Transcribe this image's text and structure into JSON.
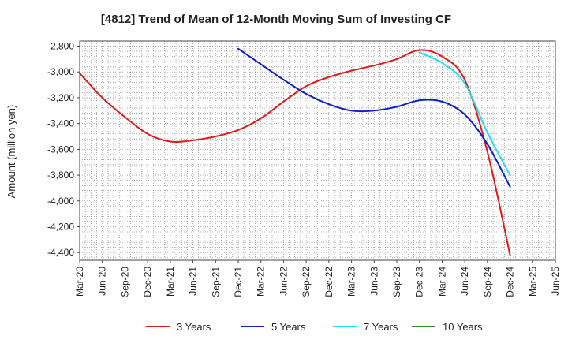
{
  "chart_data": {
    "type": "line",
    "title": "[4812]  Trend of Mean of 12-Month Moving Sum of Investing CF",
    "xlabel": "",
    "ylabel": "Amount (million yen)",
    "ylim": [
      -4460,
      -2760
    ],
    "yticks": [
      -2800,
      -3000,
      -3200,
      -3400,
      -3600,
      -3800,
      -4000,
      -4200,
      -4400
    ],
    "ytick_labels": [
      "-2,800",
      "-3,000",
      "-3,200",
      "-3,400",
      "-3,600",
      "-3,800",
      "-4,000",
      "-4,200",
      "-4,400"
    ],
    "categories": [
      "Mar-20",
      "Jun-20",
      "Sep-20",
      "Dec-20",
      "Mar-21",
      "Jun-21",
      "Sep-21",
      "Dec-21",
      "Mar-22",
      "Jun-22",
      "Sep-22",
      "Dec-22",
      "Mar-23",
      "Jun-23",
      "Sep-23",
      "Dec-23",
      "Mar-24",
      "Jun-24",
      "Sep-24",
      "Dec-24",
      "Mar-25",
      "Jun-25"
    ],
    "grid": true,
    "legend_position": "bottom",
    "series": [
      {
        "name": "3 Years",
        "color": "#e31a1c",
        "values": [
          -3010,
          -3200,
          -3350,
          -3480,
          -3540,
          -3530,
          -3500,
          -3450,
          -3360,
          -3230,
          -3110,
          -3040,
          -2990,
          -2950,
          -2900,
          -2830,
          -2880,
          -3060,
          -3620,
          -4420,
          null,
          null
        ]
      },
      {
        "name": "5 Years",
        "color": "#0a1fc9",
        "values": [
          null,
          null,
          null,
          null,
          null,
          null,
          null,
          -2820,
          -2940,
          -3060,
          -3170,
          -3250,
          -3300,
          -3300,
          -3270,
          -3220,
          -3230,
          -3330,
          -3560,
          -3890,
          null,
          null
        ]
      },
      {
        "name": "7 Years",
        "color": "#22e0f0",
        "values": [
          null,
          null,
          null,
          null,
          null,
          null,
          null,
          null,
          null,
          null,
          null,
          null,
          null,
          null,
          null,
          -2850,
          -2930,
          -3090,
          -3470,
          -3800,
          null,
          null
        ]
      },
      {
        "name": "10 Years",
        "color": "#2a8a2a",
        "values": [
          null,
          null,
          null,
          null,
          null,
          null,
          null,
          null,
          null,
          null,
          null,
          null,
          null,
          null,
          null,
          null,
          null,
          null,
          null,
          null,
          null,
          null
        ]
      }
    ]
  }
}
